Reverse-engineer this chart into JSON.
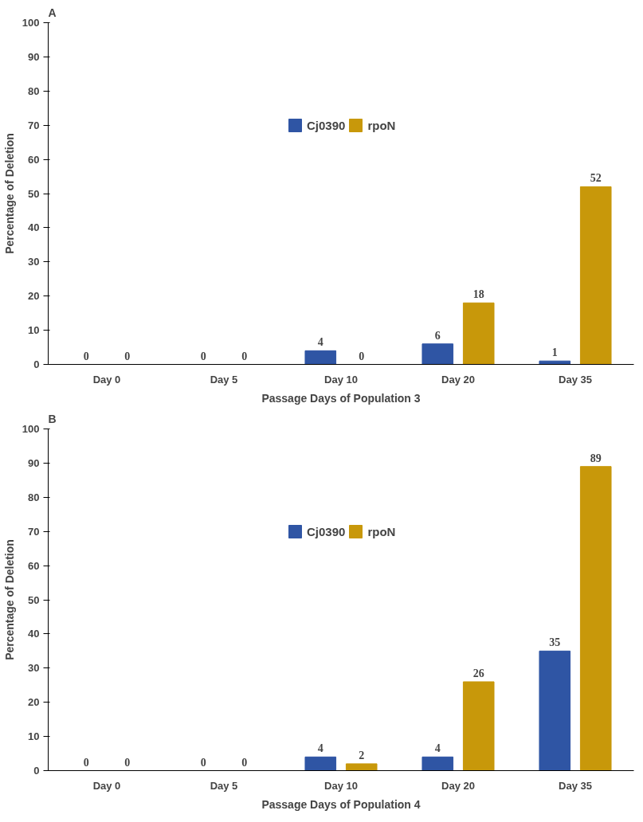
{
  "chart_data": [
    {
      "type": "bar",
      "title": "A",
      "xlabel": "Passage Days of Population 3",
      "ylabel": "Percentage of Deletion",
      "categories": [
        "Day 0",
        "Day 5",
        "Day 10",
        "Day 20",
        "Day 35"
      ],
      "series": [
        {
          "name": "Cj0390",
          "color": "#2f55a4",
          "values": [
            0,
            0,
            4,
            6,
            1
          ]
        },
        {
          "name": "rpoN",
          "color": "#c8980a",
          "values": [
            0,
            0,
            0,
            18,
            52
          ]
        }
      ],
      "ylim": [
        0,
        100
      ],
      "yticks": [
        0,
        10,
        20,
        30,
        40,
        50,
        60,
        70,
        80,
        90,
        100
      ],
      "grid": false,
      "legend": "top",
      "data_labels": true
    },
    {
      "type": "bar",
      "title": "B",
      "xlabel": "Passage Days of Population 4",
      "ylabel": "Percentage of Deletion",
      "categories": [
        "Day 0",
        "Day 5",
        "Day 10",
        "Day 20",
        "Day 35"
      ],
      "series": [
        {
          "name": "Cj0390",
          "color": "#2f55a4",
          "values": [
            0,
            0,
            4,
            4,
            35
          ]
        },
        {
          "name": "rpoN",
          "color": "#c8980a",
          "values": [
            0,
            0,
            2,
            26,
            89
          ]
        }
      ],
      "ylim": [
        0,
        100
      ],
      "yticks": [
        0,
        10,
        20,
        30,
        40,
        50,
        60,
        70,
        80,
        90,
        100
      ],
      "grid": false,
      "legend": "top",
      "data_labels": true
    }
  ]
}
